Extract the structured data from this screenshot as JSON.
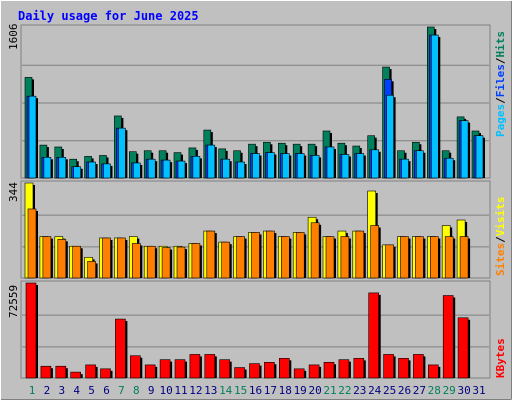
{
  "title": "Daily usage for June 2025",
  "colors": {
    "hits": "#00805c",
    "files": "#0040ff",
    "pages": "#00c0ff",
    "visits": "#ffff00",
    "sites": "#ff8000",
    "kbytes": "#ff0000",
    "weekend": "#00805c",
    "weekday": "#000080"
  },
  "chart_data": [
    {
      "type": "bar",
      "name": "hits-files-pages",
      "y_max_label": "1606",
      "ylim": [
        0,
        1606
      ],
      "legend": [
        "Pages",
        "/",
        "Files",
        "/",
        "Hits"
      ],
      "categories": [
        "1",
        "2",
        "3",
        "4",
        "5",
        "6",
        "7",
        "8",
        "9",
        "10",
        "11",
        "12",
        "13",
        "14",
        "15",
        "16",
        "17",
        "18",
        "19",
        "20",
        "21",
        "22",
        "23",
        "24",
        "25",
        "26",
        "27",
        "28",
        "29",
        "30",
        "31"
      ],
      "series": [
        {
          "name": "Hits",
          "values": [
            1070,
            350,
            330,
            200,
            230,
            240,
            660,
            280,
            290,
            290,
            270,
            320,
            510,
            310,
            290,
            360,
            380,
            370,
            360,
            360,
            500,
            370,
            340,
            450,
            1180,
            290,
            380,
            1606,
            290,
            650,
            500
          ]
        },
        {
          "name": "Files",
          "values": [
            870,
            220,
            220,
            120,
            170,
            150,
            530,
            160,
            200,
            190,
            180,
            230,
            350,
            200,
            170,
            260,
            270,
            260,
            260,
            240,
            330,
            250,
            260,
            300,
            1050,
            200,
            290,
            1520,
            210,
            610,
            450
          ]
        },
        {
          "name": "Pages",
          "values": [
            870,
            220,
            220,
            120,
            170,
            150,
            530,
            160,
            200,
            190,
            180,
            230,
            350,
            200,
            170,
            260,
            270,
            260,
            260,
            240,
            330,
            250,
            260,
            300,
            880,
            200,
            290,
            1520,
            210,
            610,
            450
          ]
        }
      ]
    },
    {
      "type": "bar",
      "name": "visits-sites",
      "y_max_label": "344",
      "ylim": [
        0,
        344
      ],
      "legend": [
        "Sites",
        "/",
        "Visits"
      ],
      "categories": [
        "1",
        "2",
        "3",
        "4",
        "5",
        "6",
        "7",
        "8",
        "9",
        "10",
        "11",
        "12",
        "13",
        "14",
        "15",
        "16",
        "17",
        "18",
        "19",
        "20",
        "21",
        "22",
        "23",
        "24",
        "25",
        "26",
        "27",
        "28",
        "29",
        "30",
        "31"
      ],
      "series": [
        {
          "name": "Visits",
          "values": [
            344,
            150,
            150,
            115,
            75,
            145,
            145,
            150,
            115,
            115,
            115,
            125,
            170,
            130,
            150,
            165,
            170,
            150,
            165,
            220,
            150,
            170,
            170,
            315,
            120,
            150,
            150,
            150,
            190,
            210,
            0
          ]
        },
        {
          "name": "Sites",
          "values": [
            250,
            150,
            140,
            115,
            60,
            145,
            145,
            125,
            115,
            110,
            112,
            125,
            170,
            130,
            150,
            165,
            170,
            150,
            165,
            200,
            150,
            150,
            170,
            190,
            120,
            150,
            150,
            150,
            150,
            150,
            0
          ]
        }
      ]
    },
    {
      "type": "bar",
      "name": "kbytes",
      "y_max_label": "72559",
      "ylim": [
        0,
        72559
      ],
      "legend": [
        "KBytes"
      ],
      "categories": [
        "1",
        "2",
        "3",
        "4",
        "5",
        "6",
        "7",
        "8",
        "9",
        "10",
        "11",
        "12",
        "13",
        "14",
        "15",
        "16",
        "17",
        "18",
        "19",
        "20",
        "21",
        "22",
        "23",
        "24",
        "25",
        "26",
        "27",
        "28",
        "29",
        "30",
        "31"
      ],
      "series": [
        {
          "name": "KBytes",
          "values": [
            72559,
            9000,
            9000,
            4500,
            10000,
            7000,
            45000,
            17000,
            10000,
            14000,
            14000,
            18000,
            18000,
            14000,
            8000,
            11000,
            12000,
            15000,
            7000,
            10000,
            12000,
            14000,
            15000,
            65000,
            18000,
            15000,
            18000,
            10000,
            63000,
            46000,
            0
          ]
        }
      ]
    }
  ],
  "x_labels": [
    {
      "text": "1",
      "weekend": true
    },
    {
      "text": "2",
      "weekend": false
    },
    {
      "text": "3",
      "weekend": false
    },
    {
      "text": "4",
      "weekend": false
    },
    {
      "text": "5",
      "weekend": false
    },
    {
      "text": "6",
      "weekend": false
    },
    {
      "text": "7",
      "weekend": true
    },
    {
      "text": "8",
      "weekend": true
    },
    {
      "text": "9",
      "weekend": false
    },
    {
      "text": "10",
      "weekend": false
    },
    {
      "text": "11",
      "weekend": false
    },
    {
      "text": "12",
      "weekend": false
    },
    {
      "text": "13",
      "weekend": false
    },
    {
      "text": "14",
      "weekend": true
    },
    {
      "text": "15",
      "weekend": true
    },
    {
      "text": "16",
      "weekend": false
    },
    {
      "text": "17",
      "weekend": false
    },
    {
      "text": "18",
      "weekend": false
    },
    {
      "text": "19",
      "weekend": false
    },
    {
      "text": "20",
      "weekend": false
    },
    {
      "text": "21",
      "weekend": true
    },
    {
      "text": "22",
      "weekend": true
    },
    {
      "text": "23",
      "weekend": false
    },
    {
      "text": "24",
      "weekend": false
    },
    {
      "text": "25",
      "weekend": false
    },
    {
      "text": "26",
      "weekend": false
    },
    {
      "text": "27",
      "weekend": false
    },
    {
      "text": "28",
      "weekend": true
    },
    {
      "text": "29",
      "weekend": true
    },
    {
      "text": "30",
      "weekend": false
    },
    {
      "text": "31",
      "weekend": false
    }
  ]
}
